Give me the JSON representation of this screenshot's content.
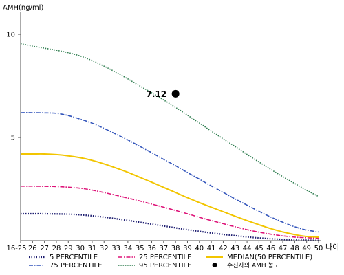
{
  "chart_data": {
    "type": "line",
    "ylabel": "AMH(ng/ml)",
    "xlabel": "나이",
    "ylim": [
      0,
      11
    ],
    "yticks": [
      5,
      10
    ],
    "x": [
      "16-25",
      "26",
      "27",
      "28",
      "29",
      "30",
      "31",
      "32",
      "33",
      "34",
      "35",
      "36",
      "37",
      "38",
      "39",
      "40",
      "41",
      "42",
      "43",
      "44",
      "45",
      "46",
      "47",
      "48",
      "49",
      "50"
    ],
    "series": [
      {
        "name": "5 PERCENTILE",
        "color": "#1a1a6e",
        "dash": "1.5 2",
        "width": 2.2,
        "values": [
          1.3,
          1.3,
          1.3,
          1.29,
          1.28,
          1.25,
          1.2,
          1.14,
          1.06,
          0.98,
          0.89,
          0.8,
          0.71,
          0.62,
          0.53,
          0.45,
          0.37,
          0.3,
          0.24,
          0.18,
          0.13,
          0.09,
          0.06,
          0.04,
          0.02,
          0.01
        ]
      },
      {
        "name": "75 PERCENTILE",
        "color": "#3355bb",
        "dash": "6 2 1.5 2",
        "width": 1.6,
        "values": [
          6.2,
          6.2,
          6.19,
          6.17,
          6.06,
          5.89,
          5.69,
          5.44,
          5.16,
          4.88,
          4.57,
          4.26,
          3.94,
          3.63,
          3.3,
          2.98,
          2.65,
          2.34,
          2.02,
          1.72,
          1.42,
          1.14,
          0.89,
          0.67,
          0.51,
          0.42
        ]
      },
      {
        "name": "25 PERCENTILE",
        "color": "#dd1177",
        "dash": "6 2 1.5 2",
        "width": 1.6,
        "values": [
          2.64,
          2.64,
          2.63,
          2.62,
          2.59,
          2.54,
          2.45,
          2.33,
          2.2,
          2.06,
          1.92,
          1.77,
          1.62,
          1.46,
          1.3,
          1.13,
          0.97,
          0.82,
          0.67,
          0.53,
          0.41,
          0.31,
          0.23,
          0.17,
          0.14,
          0.12
        ]
      },
      {
        "name": "95 PERCENTILE",
        "color": "#2e7d4f",
        "dash": "1.5 1.8",
        "width": 1.6,
        "values": [
          9.55,
          9.43,
          9.33,
          9.23,
          9.11,
          8.95,
          8.73,
          8.46,
          8.16,
          7.84,
          7.5,
          7.17,
          6.82,
          6.46,
          6.08,
          5.7,
          5.31,
          4.93,
          4.56,
          4.18,
          3.81,
          3.45,
          3.1,
          2.77,
          2.44,
          2.14
        ]
      },
      {
        "name": "MEDIAN(50 PERCENTILE)",
        "color": "#f2c500",
        "dash": "",
        "width": 2.0,
        "values": [
          4.2,
          4.2,
          4.2,
          4.17,
          4.11,
          4.02,
          3.89,
          3.72,
          3.52,
          3.31,
          3.07,
          2.83,
          2.58,
          2.33,
          2.08,
          1.84,
          1.62,
          1.4,
          1.18,
          0.97,
          0.77,
          0.58,
          0.42,
          0.29,
          0.2,
          0.17
        ]
      }
    ],
    "marker": {
      "name": "수진자의 AMH 농도",
      "x": "38",
      "y": 7.12,
      "label": "7.12",
      "color": "#000000"
    },
    "legend_position": "bottom"
  }
}
